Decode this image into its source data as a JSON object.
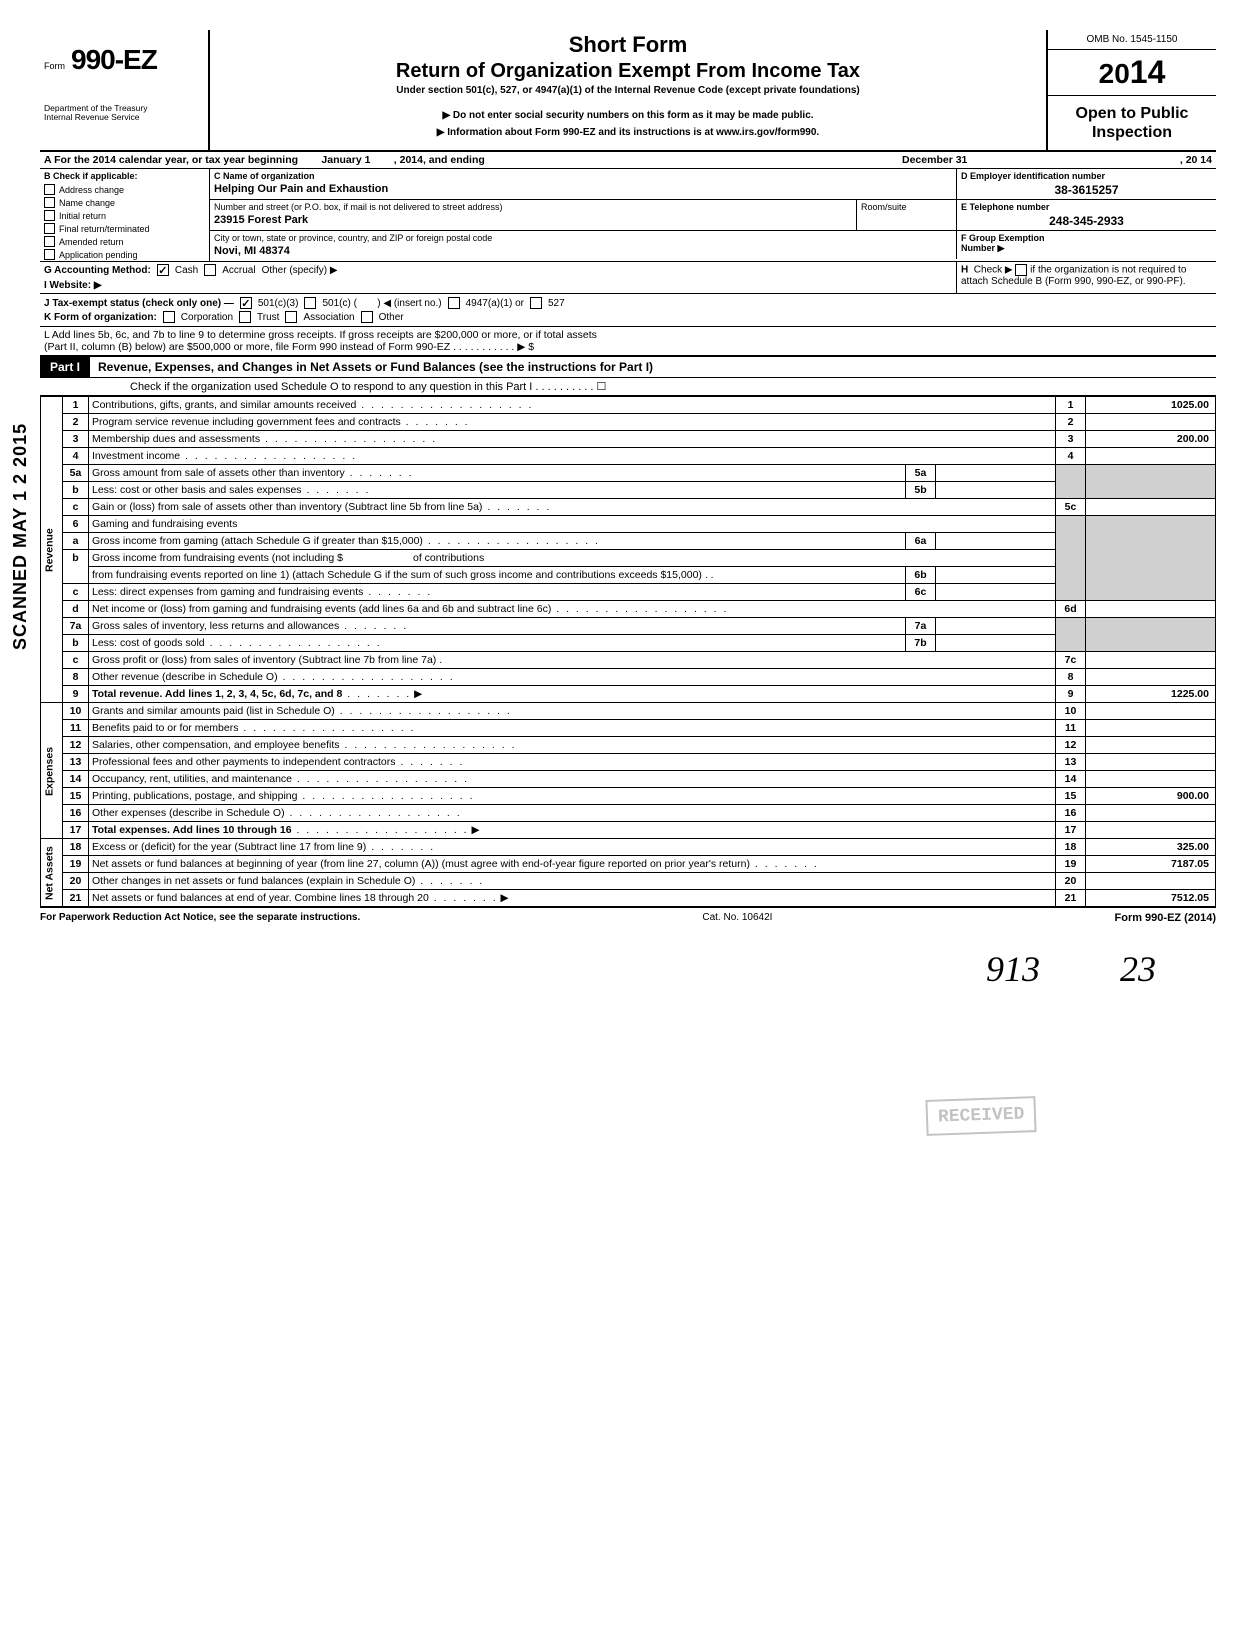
{
  "form": {
    "formLabel": "Form",
    "formNumber": "990-EZ",
    "department": "Department of the Treasury\nInternal Revenue Service",
    "shortForm": "Short Form",
    "title": "Return of Organization Exempt From Income Tax",
    "underSection": "Under section 501(c), 527, or 4947(a)(1) of the Internal Revenue Code (except private foundations)",
    "ssnNotice": "▶ Do not enter social security numbers on this form as it may be made public.",
    "infoNotice": "▶ Information about Form 990-EZ and its instructions is at www.irs.gov/form990.",
    "omb": "OMB No. 1545-1150",
    "year": "2014",
    "openPublic": "Open to Public Inspection"
  },
  "rowA": {
    "text": "A  For the 2014 calendar year, or tax year beginning",
    "beginDate": "January 1",
    "mid": ", 2014, and ending",
    "endDate": "December 31",
    "yr": ", 20   14"
  },
  "boxB": {
    "header": "B  Check if applicable:",
    "items": [
      "Address change",
      "Name change",
      "Initial return",
      "Final return/terminated",
      "Amended return",
      "Application pending"
    ]
  },
  "boxC": {
    "label": "C  Name of organization",
    "value": "Helping Our Pain and Exhaustion"
  },
  "boxD": {
    "label": "D Employer identification number",
    "value": "38-3615257"
  },
  "addr": {
    "label": "Number and street (or P.O. box, if mail is not delivered to street address)",
    "value": "23915 Forest Park",
    "roomLabel": "Room/suite"
  },
  "boxE": {
    "label": "E Telephone number",
    "value": "248-345-2933"
  },
  "city": {
    "label": "City or town, state or province, country, and ZIP or foreign postal code",
    "value": "Novi, MI  48374"
  },
  "boxF": {
    "label": "F Group Exemption",
    "label2": "Number ▶"
  },
  "rowG": {
    "label": "G Accounting Method:",
    "cash": "Cash",
    "accrual": "Accrual",
    "other": "Other (specify) ▶"
  },
  "rowH": {
    "text": "H  Check ▶ ☐ if the organization is not required to attach Schedule B (Form 990, 990-EZ, or 990-PF)."
  },
  "rowI": {
    "label": "I   Website: ▶"
  },
  "rowJ": {
    "label": "J  Tax-exempt status (check only one) —",
    "opt1": "501(c)(3)",
    "opt2": "501(c) (",
    "opt2b": ") ◀ (insert no.)",
    "opt3": "4947(a)(1) or",
    "opt4": "527"
  },
  "rowK": {
    "label": "K  Form of organization:",
    "opts": [
      "Corporation",
      "Trust",
      "Association",
      "Other"
    ]
  },
  "rowL": {
    "text1": "L  Add lines 5b, 6c, and 7b to line 9 to determine gross receipts. If gross receipts are $200,000 or more, or if total assets",
    "text2": "(Part II, column (B) below) are $500,000 or more, file Form 990 instead of Form 990-EZ .   .   .   .   .   .   .   .   .   .   .   ▶  $"
  },
  "part1": {
    "label": "Part I",
    "title": "Revenue, Expenses, and Changes in Net Assets or Fund Balances (see the instructions for Part I)",
    "checkO": "Check if the organization used Schedule O to respond to any question in this Part I .   .   .   .   .   .   .   .   .   .   ☐"
  },
  "sections": {
    "revenue": "Revenue",
    "expenses": "Expenses",
    "netassets": "Net Assets"
  },
  "lines": {
    "1": {
      "d": "Contributions, gifts, grants, and similar amounts received",
      "v": "1025.00"
    },
    "2": {
      "d": "Program service revenue including government fees and contracts"
    },
    "3": {
      "d": "Membership dues and assessments",
      "v": "200.00"
    },
    "4": {
      "d": "Investment income"
    },
    "5a": {
      "d": "Gross amount from sale of assets other than inventory"
    },
    "5b": {
      "d": "Less: cost or other basis and sales expenses"
    },
    "5c": {
      "d": "Gain or (loss) from sale of assets other than inventory (Subtract line 5b from line 5a)"
    },
    "6": {
      "d": "Gaming and fundraising events"
    },
    "6a": {
      "d": "Gross income from gaming (attach Schedule G if greater than $15,000)"
    },
    "6b": {
      "d": "Gross income from fundraising events (not including  $",
      "d2": "of contributions from fundraising events reported on line 1) (attach Schedule G if the sum of such gross income and contributions exceeds $15,000)"
    },
    "6c": {
      "d": "Less: direct expenses from gaming and fundraising events"
    },
    "6d": {
      "d": "Net income or (loss) from gaming and fundraising events (add lines 6a and 6b and subtract line 6c)"
    },
    "7a": {
      "d": "Gross sales of inventory, less returns and allowances"
    },
    "7b": {
      "d": "Less: cost of goods sold"
    },
    "7c": {
      "d": "Gross profit or (loss) from sales of inventory (Subtract line 7b from line 7a)"
    },
    "8": {
      "d": "Other revenue (describe in Schedule O)"
    },
    "9": {
      "d": "Total revenue. Add lines 1, 2, 3, 4, 5c, 6d, 7c, and 8",
      "v": "1225.00"
    },
    "10": {
      "d": "Grants and similar amounts paid (list in Schedule O)"
    },
    "11": {
      "d": "Benefits paid to or for members"
    },
    "12": {
      "d": "Salaries, other compensation, and employee benefits"
    },
    "13": {
      "d": "Professional fees and other payments to independent contractors"
    },
    "14": {
      "d": "Occupancy, rent, utilities, and maintenance"
    },
    "15": {
      "d": "Printing, publications, postage, and shipping",
      "v": "900.00"
    },
    "16": {
      "d": "Other expenses (describe in Schedule O)"
    },
    "17": {
      "d": "Total expenses. Add lines 10 through 16"
    },
    "18": {
      "d": "Excess or (deficit) for the year (Subtract line 17 from line 9)",
      "v": "325.00"
    },
    "19": {
      "d": "Net assets or fund balances at beginning of year (from line 27, column (A)) (must agree with end-of-year figure reported on prior year's return)",
      "v": "7187.05"
    },
    "20": {
      "d": "Other changes in net assets or fund balances (explain in Schedule O)"
    },
    "21": {
      "d": "Net assets or fund balances at end of year. Combine lines 18 through 20",
      "v": "7512.05"
    }
  },
  "footer": {
    "left": "For Paperwork Reduction Act Notice, see the separate instructions.",
    "mid": "Cat. No. 10642I",
    "right": "Form 990-EZ (2014)"
  },
  "scanned": "SCANNED MAY 1 2 2015",
  "stamp": "RECEIVED",
  "handwriting": {
    "a": "913",
    "b": "23"
  }
}
